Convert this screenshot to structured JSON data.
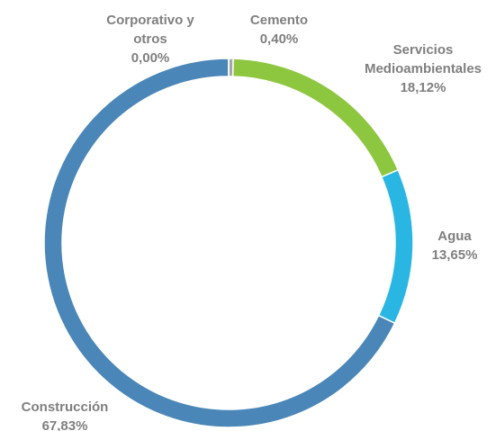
{
  "chart_data": {
    "type": "donut",
    "categories": [
      "Cemento",
      "Servicios Medioambientales",
      "Agua",
      "Construcción",
      "Corporativo y otros"
    ],
    "values": [
      0.4,
      18.12,
      13.65,
      67.83,
      0.0
    ],
    "value_labels": [
      "0,40%",
      "18,12%",
      "13,65%",
      "67,83%",
      "0,00%"
    ],
    "colors": [
      "#a6a6a6",
      "#8dc63f",
      "#29b6e3",
      "#4a86b8",
      "#4a86b8"
    ]
  }
}
